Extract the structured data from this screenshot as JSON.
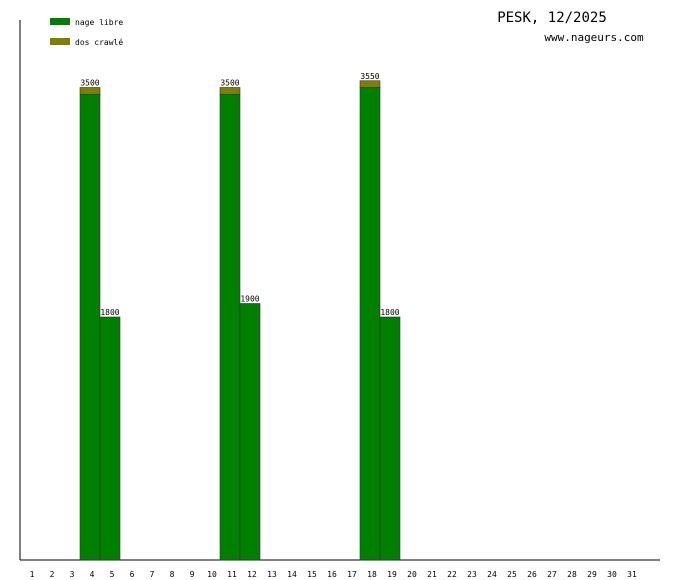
{
  "chart_data": {
    "type": "stacked-bar",
    "title": "PESK, 12/2025",
    "subtitle": "www.nageurs.com",
    "categories": [
      "1",
      "2",
      "3",
      "4",
      "5",
      "6",
      "7",
      "8",
      "9",
      "10",
      "11",
      "12",
      "13",
      "14",
      "15",
      "16",
      "17",
      "18",
      "19",
      "20",
      "21",
      "22",
      "23",
      "24",
      "25",
      "26",
      "27",
      "28",
      "29",
      "30",
      "31"
    ],
    "series": [
      {
        "name": "nage libre",
        "color": "#008000",
        "values": [
          null,
          null,
          null,
          3450,
          1800,
          null,
          null,
          null,
          null,
          null,
          3450,
          1900,
          null,
          null,
          null,
          null,
          null,
          3500,
          1800,
          null,
          null,
          null,
          null,
          null,
          null,
          null,
          null,
          null,
          null,
          null,
          null
        ]
      },
      {
        "name": "dos crawlé",
        "color": "#808000",
        "values": [
          null,
          null,
          null,
          50,
          null,
          null,
          null,
          null,
          null,
          null,
          50,
          null,
          null,
          null,
          null,
          null,
          null,
          50,
          null,
          null,
          null,
          null,
          null,
          null,
          null,
          null,
          null,
          null,
          null,
          null,
          null
        ]
      }
    ],
    "total_labels": [
      null,
      null,
      null,
      "3500",
      "1800",
      null,
      null,
      null,
      null,
      null,
      "3500",
      "1900",
      null,
      null,
      null,
      null,
      null,
      "3550",
      "1800",
      null,
      null,
      null,
      null,
      null,
      null,
      null,
      null,
      null,
      null,
      null,
      null
    ],
    "ylim": [
      0,
      4000
    ],
    "legend": "top-left"
  }
}
